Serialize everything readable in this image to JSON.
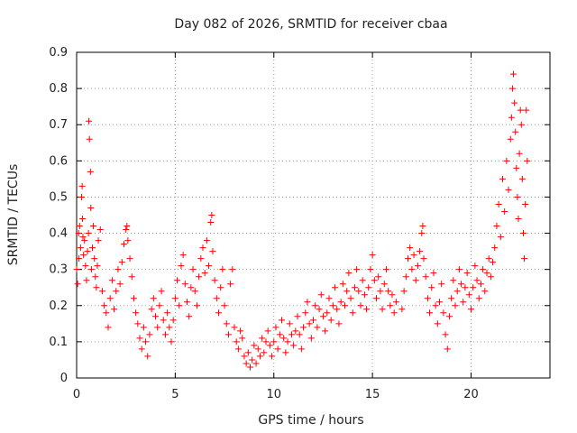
{
  "chart_data": {
    "type": "scatter",
    "title": "Day 082 of 2026, SRMTID for receiver cbaa",
    "xlabel": "GPS time / hours",
    "ylabel": "SRMTID / TECUs",
    "xlim": [
      0,
      24
    ],
    "ylim": [
      0,
      0.9
    ],
    "xticks": [
      0,
      5,
      10,
      15,
      20
    ],
    "xtick_labels": [
      "0",
      "5",
      "10",
      15,
      "20"
    ],
    "yticks": [
      0,
      0.1,
      0.2,
      0.3,
      0.4,
      0.5,
      0.6,
      0.7,
      0.8,
      0.9
    ],
    "ytick_labels": [
      "0",
      "0.1",
      "0.2",
      "0.3",
      "0.4",
      "0.5",
      "0.6",
      "0.7",
      "0.8",
      "0.9"
    ],
    "grid": true,
    "marker": "+",
    "color": "#ff0000",
    "series": [
      {
        "name": "SRMTID",
        "points": [
          [
            0.0,
            0.3
          ],
          [
            0.05,
            0.26
          ],
          [
            0.1,
            0.4
          ],
          [
            0.12,
            0.33
          ],
          [
            0.15,
            0.42
          ],
          [
            0.2,
            0.36
          ],
          [
            0.25,
            0.5
          ],
          [
            0.28,
            0.53
          ],
          [
            0.3,
            0.44
          ],
          [
            0.32,
            0.39
          ],
          [
            0.35,
            0.34
          ],
          [
            0.4,
            0.38
          ],
          [
            0.45,
            0.31
          ],
          [
            0.5,
            0.27
          ],
          [
            0.55,
            0.35
          ],
          [
            0.6,
            0.4
          ],
          [
            0.62,
            0.71
          ],
          [
            0.65,
            0.66
          ],
          [
            0.7,
            0.57
          ],
          [
            0.72,
            0.47
          ],
          [
            0.75,
            0.3
          ],
          [
            0.8,
            0.36
          ],
          [
            0.85,
            0.42
          ],
          [
            0.9,
            0.33
          ],
          [
            0.95,
            0.28
          ],
          [
            1.0,
            0.25
          ],
          [
            1.05,
            0.31
          ],
          [
            1.1,
            0.38
          ],
          [
            1.2,
            0.41
          ],
          [
            1.3,
            0.24
          ],
          [
            1.4,
            0.2
          ],
          [
            1.5,
            0.18
          ],
          [
            1.6,
            0.14
          ],
          [
            1.7,
            0.22
          ],
          [
            1.8,
            0.27
          ],
          [
            1.9,
            0.19
          ],
          [
            2.0,
            0.24
          ],
          [
            2.1,
            0.3
          ],
          [
            2.2,
            0.26
          ],
          [
            2.3,
            0.32
          ],
          [
            2.4,
            0.37
          ],
          [
            2.5,
            0.41
          ],
          [
            2.55,
            0.42
          ],
          [
            2.6,
            0.38
          ],
          [
            2.7,
            0.33
          ],
          [
            2.8,
            0.28
          ],
          [
            2.9,
            0.22
          ],
          [
            3.0,
            0.18
          ],
          [
            3.1,
            0.15
          ],
          [
            3.2,
            0.11
          ],
          [
            3.3,
            0.08
          ],
          [
            3.4,
            0.14
          ],
          [
            3.5,
            0.1
          ],
          [
            3.6,
            0.06
          ],
          [
            3.7,
            0.12
          ],
          [
            3.8,
            0.19
          ],
          [
            3.9,
            0.22
          ],
          [
            4.0,
            0.17
          ],
          [
            4.1,
            0.14
          ],
          [
            4.2,
            0.2
          ],
          [
            4.3,
            0.24
          ],
          [
            4.4,
            0.16
          ],
          [
            4.5,
            0.12
          ],
          [
            4.6,
            0.18
          ],
          [
            4.7,
            0.14
          ],
          [
            4.8,
            0.1
          ],
          [
            4.9,
            0.16
          ],
          [
            5.0,
            0.22
          ],
          [
            5.1,
            0.27
          ],
          [
            5.2,
            0.2
          ],
          [
            5.3,
            0.31
          ],
          [
            5.4,
            0.34
          ],
          [
            5.5,
            0.26
          ],
          [
            5.6,
            0.21
          ],
          [
            5.7,
            0.17
          ],
          [
            5.8,
            0.25
          ],
          [
            5.9,
            0.3
          ],
          [
            6.0,
            0.24
          ],
          [
            6.1,
            0.2
          ],
          [
            6.2,
            0.28
          ],
          [
            6.3,
            0.33
          ],
          [
            6.4,
            0.36
          ],
          [
            6.5,
            0.29
          ],
          [
            6.6,
            0.38
          ],
          [
            6.7,
            0.31
          ],
          [
            6.8,
            0.43
          ],
          [
            6.85,
            0.45
          ],
          [
            6.9,
            0.35
          ],
          [
            7.0,
            0.27
          ],
          [
            7.1,
            0.22
          ],
          [
            7.2,
            0.18
          ],
          [
            7.3,
            0.25
          ],
          [
            7.4,
            0.3
          ],
          [
            7.5,
            0.2
          ],
          [
            7.6,
            0.15
          ],
          [
            7.7,
            0.12
          ],
          [
            7.8,
            0.26
          ],
          [
            7.9,
            0.3
          ],
          [
            8.0,
            0.14
          ],
          [
            8.1,
            0.1
          ],
          [
            8.2,
            0.08
          ],
          [
            8.3,
            0.13
          ],
          [
            8.4,
            0.11
          ],
          [
            8.5,
            0.06
          ],
          [
            8.6,
            0.04
          ],
          [
            8.7,
            0.07
          ],
          [
            8.8,
            0.03
          ],
          [
            8.9,
            0.05
          ],
          [
            9.0,
            0.09
          ],
          [
            9.1,
            0.04
          ],
          [
            9.2,
            0.08
          ],
          [
            9.3,
            0.06
          ],
          [
            9.4,
            0.11
          ],
          [
            9.5,
            0.07
          ],
          [
            9.6,
            0.1
          ],
          [
            9.7,
            0.13
          ],
          [
            9.8,
            0.09
          ],
          [
            9.9,
            0.06
          ],
          [
            10.0,
            0.1
          ],
          [
            10.1,
            0.14
          ],
          [
            10.2,
            0.08
          ],
          [
            10.3,
            0.12
          ],
          [
            10.4,
            0.16
          ],
          [
            10.5,
            0.11
          ],
          [
            10.6,
            0.07
          ],
          [
            10.7,
            0.1
          ],
          [
            10.8,
            0.15
          ],
          [
            10.9,
            0.12
          ],
          [
            11.0,
            0.09
          ],
          [
            11.1,
            0.13
          ],
          [
            11.2,
            0.17
          ],
          [
            11.3,
            0.12
          ],
          [
            11.4,
            0.08
          ],
          [
            11.5,
            0.14
          ],
          [
            11.6,
            0.18
          ],
          [
            11.7,
            0.21
          ],
          [
            11.8,
            0.15
          ],
          [
            11.9,
            0.11
          ],
          [
            12.0,
            0.16
          ],
          [
            12.1,
            0.2
          ],
          [
            12.2,
            0.14
          ],
          [
            12.3,
            0.19
          ],
          [
            12.4,
            0.23
          ],
          [
            12.5,
            0.17
          ],
          [
            12.6,
            0.13
          ],
          [
            12.7,
            0.18
          ],
          [
            12.8,
            0.22
          ],
          [
            12.9,
            0.16
          ],
          [
            13.0,
            0.2
          ],
          [
            13.1,
            0.25
          ],
          [
            13.2,
            0.19
          ],
          [
            13.3,
            0.15
          ],
          [
            13.4,
            0.21
          ],
          [
            13.5,
            0.26
          ],
          [
            13.6,
            0.2
          ],
          [
            13.7,
            0.24
          ],
          [
            13.8,
            0.29
          ],
          [
            13.9,
            0.22
          ],
          [
            14.0,
            0.18
          ],
          [
            14.1,
            0.25
          ],
          [
            14.2,
            0.3
          ],
          [
            14.3,
            0.24
          ],
          [
            14.4,
            0.2
          ],
          [
            14.5,
            0.27
          ],
          [
            14.6,
            0.23
          ],
          [
            14.7,
            0.19
          ],
          [
            14.8,
            0.25
          ],
          [
            14.9,
            0.3
          ],
          [
            15.0,
            0.34
          ],
          [
            15.1,
            0.27
          ],
          [
            15.2,
            0.22
          ],
          [
            15.3,
            0.28
          ],
          [
            15.4,
            0.24
          ],
          [
            15.5,
            0.19
          ],
          [
            15.6,
            0.26
          ],
          [
            15.7,
            0.3
          ],
          [
            15.8,
            0.24
          ],
          [
            15.9,
            0.2
          ],
          [
            16.0,
            0.23
          ],
          [
            16.1,
            0.18
          ],
          [
            16.2,
            0.21
          ],
          [
            16.5,
            0.19
          ],
          [
            16.6,
            0.24
          ],
          [
            16.7,
            0.28
          ],
          [
            16.8,
            0.33
          ],
          [
            16.9,
            0.36
          ],
          [
            17.0,
            0.3
          ],
          [
            17.1,
            0.34
          ],
          [
            17.2,
            0.27
          ],
          [
            17.3,
            0.31
          ],
          [
            17.4,
            0.35
          ],
          [
            17.5,
            0.4
          ],
          [
            17.55,
            0.42
          ],
          [
            17.6,
            0.33
          ],
          [
            17.7,
            0.28
          ],
          [
            17.8,
            0.22
          ],
          [
            17.9,
            0.18
          ],
          [
            18.0,
            0.25
          ],
          [
            18.1,
            0.29
          ],
          [
            18.2,
            0.2
          ],
          [
            18.3,
            0.15
          ],
          [
            18.4,
            0.21
          ],
          [
            18.5,
            0.26
          ],
          [
            18.6,
            0.18
          ],
          [
            18.7,
            0.12
          ],
          [
            18.8,
            0.08
          ],
          [
            18.9,
            0.17
          ],
          [
            19.0,
            0.22
          ],
          [
            19.1,
            0.27
          ],
          [
            19.2,
            0.2
          ],
          [
            19.3,
            0.24
          ],
          [
            19.4,
            0.3
          ],
          [
            19.5,
            0.26
          ],
          [
            19.6,
            0.21
          ],
          [
            19.7,
            0.25
          ],
          [
            19.8,
            0.29
          ],
          [
            19.9,
            0.23
          ],
          [
            20.0,
            0.19
          ],
          [
            20.1,
            0.25
          ],
          [
            20.2,
            0.31
          ],
          [
            20.3,
            0.27
          ],
          [
            20.4,
            0.22
          ],
          [
            20.5,
            0.26
          ],
          [
            20.6,
            0.3
          ],
          [
            20.7,
            0.24
          ],
          [
            20.8,
            0.29
          ],
          [
            20.9,
            0.33
          ],
          [
            21.0,
            0.28
          ],
          [
            21.1,
            0.32
          ],
          [
            21.2,
            0.36
          ],
          [
            21.3,
            0.42
          ],
          [
            21.4,
            0.48
          ],
          [
            21.5,
            0.39
          ],
          [
            21.6,
            0.55
          ],
          [
            21.7,
            0.46
          ],
          [
            21.8,
            0.6
          ],
          [
            21.9,
            0.52
          ],
          [
            22.0,
            0.66
          ],
          [
            22.05,
            0.72
          ],
          [
            22.1,
            0.8
          ],
          [
            22.15,
            0.84
          ],
          [
            22.2,
            0.76
          ],
          [
            22.25,
            0.68
          ],
          [
            22.3,
            0.58
          ],
          [
            22.35,
            0.5
          ],
          [
            22.4,
            0.44
          ],
          [
            22.45,
            0.62
          ],
          [
            22.5,
            0.74
          ],
          [
            22.55,
            0.7
          ],
          [
            22.6,
            0.55
          ],
          [
            22.65,
            0.4
          ],
          [
            22.7,
            0.33
          ],
          [
            22.75,
            0.48
          ],
          [
            22.8,
            0.74
          ],
          [
            22.85,
            0.6
          ]
        ]
      }
    ]
  }
}
